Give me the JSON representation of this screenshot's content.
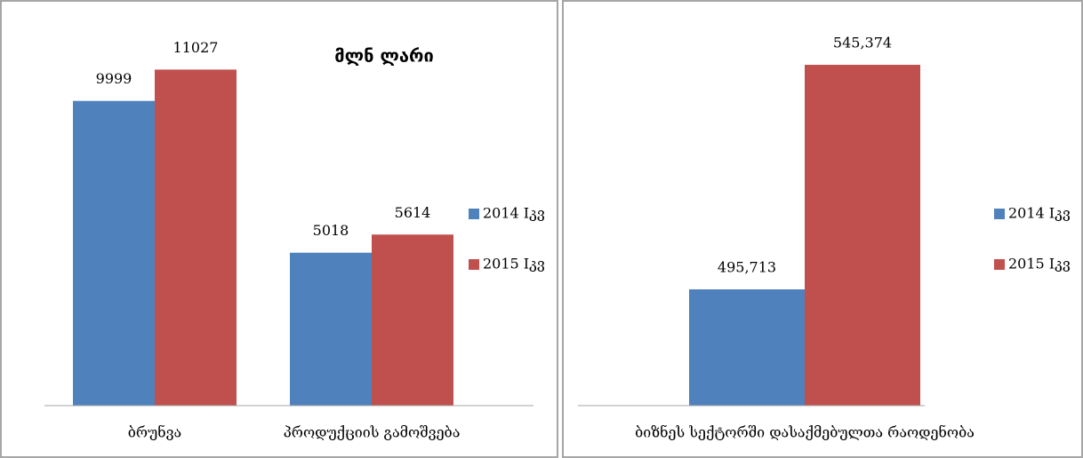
{
  "chart_data": [
    {
      "type": "bar",
      "annotation": "მლნ ლარი",
      "categories": [
        "ბრუნვა",
        "პროდუქციის გამოშვება"
      ],
      "series": [
        {
          "name": "2014 Iკვ",
          "color": "#4f81bd",
          "values": [
            9999,
            5018
          ]
        },
        {
          "name": "2015 Iკვ",
          "color": "#c0504d",
          "values": [
            11027,
            5614
          ]
        }
      ],
      "ylim": [
        0,
        12000
      ],
      "legend": "right"
    },
    {
      "type": "bar",
      "categories": [
        "ბიზნეს სექტორში დასაქმებულთა რაოდენობა"
      ],
      "series": [
        {
          "name": "2014 Iკვ",
          "color": "#4f81bd",
          "values": [
            495713
          ],
          "value_labels": [
            "495,713"
          ]
        },
        {
          "name": "2015 Iკვ",
          "color": "#c0504d",
          "values": [
            545374
          ],
          "value_labels": [
            "545,374"
          ]
        }
      ],
      "ylim": [
        470000,
        555000
      ],
      "legend": "right"
    }
  ]
}
